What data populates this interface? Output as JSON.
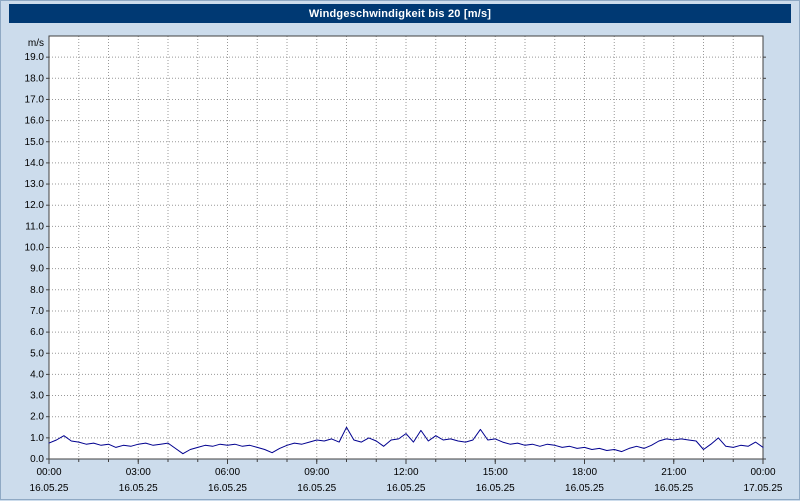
{
  "window": {
    "title": "Windgeschwindigkeit bis 20 [m/s]"
  },
  "colors": {
    "background": "#ccdcec",
    "title_bar": "#003973",
    "title_text": "#ffffff",
    "plot_bg": "#ffffff",
    "grid": "#999999",
    "axis": "#404040",
    "line": "#00008f",
    "text": "#000000"
  },
  "chart_data": {
    "type": "line",
    "title": "Windgeschwindigkeit bis 20 [m/s]",
    "xlabel": "",
    "ylabel": "m/s",
    "ylim": [
      0,
      20
    ],
    "ytick_step": 1,
    "ytick_decimals": 1,
    "x_total_hours": 24,
    "x_grid_step_hours": 1,
    "grid": {
      "horizontal": true,
      "vertical": true,
      "style": "dotted"
    },
    "legend": "none",
    "xticks": [
      {
        "hour": 0,
        "time": "00:00",
        "date": "16.05.25"
      },
      {
        "hour": 3,
        "time": "03:00",
        "date": "16.05.25"
      },
      {
        "hour": 6,
        "time": "06:00",
        "date": "16.05.25"
      },
      {
        "hour": 9,
        "time": "09:00",
        "date": "16.05.25"
      },
      {
        "hour": 12,
        "time": "12:00",
        "date": "16.05.25"
      },
      {
        "hour": 15,
        "time": "15:00",
        "date": "16.05.25"
      },
      {
        "hour": 18,
        "time": "18:00",
        "date": "16.05.25"
      },
      {
        "hour": 21,
        "time": "21:00",
        "date": "16.05.25"
      },
      {
        "hour": 24,
        "time": "00:00",
        "date": "17.05.25"
      }
    ],
    "series": [
      {
        "name": "Windgeschwindigkeit",
        "unit": "m/s",
        "start_time": "00:00",
        "interval_minutes": 15,
        "values": [
          0.75,
          0.9,
          1.1,
          0.85,
          0.8,
          0.7,
          0.75,
          0.65,
          0.7,
          0.55,
          0.65,
          0.6,
          0.7,
          0.75,
          0.65,
          0.7,
          0.75,
          0.5,
          0.25,
          0.45,
          0.55,
          0.65,
          0.6,
          0.7,
          0.65,
          0.7,
          0.6,
          0.65,
          0.55,
          0.45,
          0.3,
          0.5,
          0.65,
          0.75,
          0.7,
          0.8,
          0.9,
          0.85,
          0.95,
          0.8,
          1.5,
          0.9,
          0.8,
          1.0,
          0.85,
          0.6,
          0.9,
          0.95,
          1.2,
          0.8,
          1.35,
          0.85,
          1.1,
          0.9,
          0.95,
          0.85,
          0.8,
          0.9,
          1.4,
          0.9,
          0.95,
          0.8,
          0.7,
          0.75,
          0.65,
          0.7,
          0.6,
          0.7,
          0.65,
          0.55,
          0.6,
          0.5,
          0.55,
          0.45,
          0.5,
          0.4,
          0.45,
          0.35,
          0.5,
          0.6,
          0.5,
          0.65,
          0.85,
          0.95,
          0.9,
          0.95,
          0.9,
          0.85,
          0.45,
          0.7,
          1.0,
          0.6,
          0.55,
          0.65,
          0.6,
          0.8,
          0.55
        ]
      }
    ]
  }
}
